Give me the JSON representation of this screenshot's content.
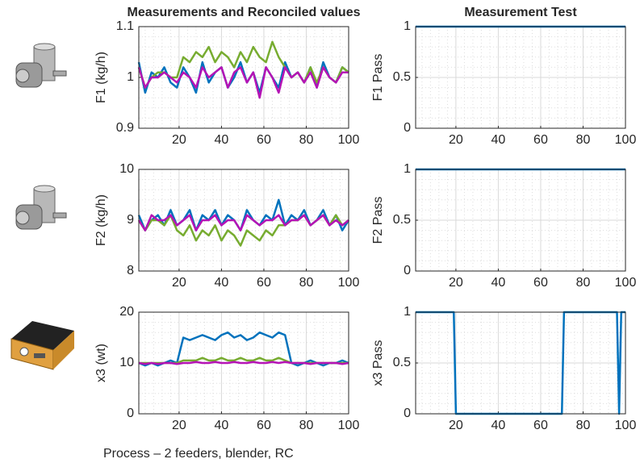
{
  "chart_data": [
    {
      "type": "line",
      "title": "Measurements and Reconciled values",
      "ylabel": "F1 (kg/h)",
      "grid": true,
      "x": [
        1,
        4,
        7,
        10,
        13,
        16,
        19,
        22,
        25,
        28,
        31,
        34,
        37,
        40,
        43,
        46,
        49,
        52,
        55,
        58,
        61,
        64,
        67,
        70,
        73,
        76,
        79,
        82,
        85,
        88,
        91,
        94,
        97,
        100
      ],
      "xlim": [
        1,
        100
      ],
      "xticks": [
        20,
        40,
        60,
        80,
        100
      ],
      "ylim": [
        0.9,
        1.1
      ],
      "yticks": [
        0.9,
        1,
        1.1
      ],
      "series": [
        {
          "color": "#0072bd",
          "values": [
            1.03,
            0.97,
            1.01,
            1.0,
            1.02,
            0.99,
            0.98,
            1.02,
            1.0,
            0.97,
            1.03,
            0.99,
            1.01,
            1.02,
            0.98,
            1.0,
            1.03,
            0.99,
            1.01,
            0.97,
            1.02,
            1.0,
            0.98,
            1.03,
            1.0,
            1.01,
            0.99,
            1.02,
            0.98,
            1.03,
            1.0,
            0.99,
            1.02,
            1.01
          ]
        },
        {
          "color": "#77ac30",
          "values": [
            1.02,
            0.98,
            1.0,
            1.01,
            1.01,
            1.0,
            1.0,
            1.04,
            1.03,
            1.05,
            1.04,
            1.06,
            1.03,
            1.05,
            1.04,
            1.02,
            1.05,
            1.03,
            1.06,
            1.04,
            1.03,
            1.07,
            1.04,
            1.02,
            1.0,
            1.01,
            0.99,
            1.02,
            0.99,
            1.02,
            1.0,
            0.99,
            1.02,
            1.01
          ]
        },
        {
          "color": "#b513b5",
          "values": [
            1.02,
            0.98,
            1.0,
            1.0,
            1.01,
            1.0,
            0.99,
            1.01,
            1.0,
            0.98,
            1.02,
            1.0,
            1.01,
            1.02,
            0.98,
            1.01,
            1.02,
            0.99,
            1.01,
            0.96,
            1.02,
            1.0,
            0.97,
            1.02,
            1.0,
            1.01,
            0.99,
            1.01,
            0.98,
            1.02,
            1.0,
            0.99,
            1.01,
            1.01
          ]
        }
      ]
    },
    {
      "type": "line",
      "title": "Measurement Test",
      "ylabel": "F1 Pass",
      "grid": true,
      "x": [
        1,
        100
      ],
      "xlim": [
        1,
        100
      ],
      "xticks": [
        20,
        40,
        60,
        80,
        100
      ],
      "ylim": [
        0,
        1
      ],
      "yticks": [
        0,
        0.5,
        1
      ],
      "series": [
        {
          "color": "#0072bd",
          "values": [
            1,
            1
          ]
        }
      ]
    },
    {
      "type": "line",
      "ylabel": "F2 (kg/h)",
      "grid": true,
      "x": [
        1,
        4,
        7,
        10,
        13,
        16,
        19,
        22,
        25,
        28,
        31,
        34,
        37,
        40,
        43,
        46,
        49,
        52,
        55,
        58,
        61,
        64,
        67,
        70,
        73,
        76,
        79,
        82,
        85,
        88,
        91,
        94,
        97,
        100
      ],
      "xlim": [
        1,
        100
      ],
      "xticks": [
        20,
        40,
        60,
        80,
        100
      ],
      "ylim": [
        8,
        10
      ],
      "yticks": [
        8,
        9,
        10
      ],
      "series": [
        {
          "color": "#0072bd",
          "values": [
            9.1,
            8.8,
            9.0,
            9.1,
            8.9,
            9.2,
            8.9,
            9.0,
            9.2,
            8.8,
            9.1,
            9.0,
            9.2,
            8.9,
            9.1,
            9.0,
            8.8,
            9.2,
            9.0,
            8.9,
            9.1,
            9.0,
            9.4,
            8.9,
            9.1,
            9.0,
            9.2,
            8.9,
            9.0,
            9.2,
            8.9,
            9.1,
            8.8,
            9.0
          ]
        },
        {
          "color": "#77ac30",
          "values": [
            9.0,
            8.8,
            9.0,
            9.0,
            8.9,
            9.1,
            8.8,
            8.7,
            8.9,
            8.6,
            8.8,
            8.7,
            8.9,
            8.6,
            8.8,
            8.7,
            8.5,
            8.8,
            8.7,
            8.6,
            8.8,
            8.7,
            8.9,
            8.9,
            9.0,
            9.0,
            9.1,
            8.9,
            9.0,
            9.1,
            8.9,
            9.1,
            8.9,
            9.0
          ]
        },
        {
          "color": "#b513b5",
          "values": [
            9.0,
            8.8,
            9.1,
            9.0,
            9.0,
            9.1,
            8.9,
            9.0,
            9.1,
            8.8,
            9.0,
            9.0,
            9.1,
            8.9,
            9.0,
            9.0,
            8.8,
            9.1,
            9.0,
            8.9,
            9.0,
            9.0,
            9.1,
            8.9,
            9.0,
            9.0,
            9.1,
            8.9,
            9.0,
            9.1,
            8.9,
            9.0,
            8.9,
            9.0
          ]
        }
      ]
    },
    {
      "type": "line",
      "ylabel": "F2 Pass",
      "grid": true,
      "x": [
        1,
        100
      ],
      "xlim": [
        1,
        100
      ],
      "xticks": [
        20,
        40,
        60,
        80,
        100
      ],
      "ylim": [
        0,
        1
      ],
      "yticks": [
        0,
        0.5,
        1
      ],
      "series": [
        {
          "color": "#0072bd",
          "values": [
            1,
            1
          ]
        }
      ]
    },
    {
      "type": "line",
      "ylabel": "x3 (wt)",
      "grid": true,
      "x": [
        1,
        4,
        7,
        10,
        13,
        16,
        19,
        22,
        25,
        28,
        31,
        34,
        37,
        40,
        43,
        46,
        49,
        52,
        55,
        58,
        61,
        64,
        67,
        70,
        73,
        76,
        79,
        82,
        85,
        88,
        91,
        94,
        97,
        100
      ],
      "xlim": [
        1,
        100
      ],
      "xticks": [
        20,
        40,
        60,
        80,
        100
      ],
      "ylim": [
        0,
        20
      ],
      "yticks": [
        0,
        10,
        20
      ],
      "series": [
        {
          "color": "#0072bd",
          "values": [
            10,
            9.5,
            10,
            9.5,
            10,
            10.5,
            10,
            15,
            14.5,
            15,
            15.5,
            15,
            14.5,
            15.5,
            16,
            15,
            15.5,
            14.5,
            15,
            16,
            15.5,
            15,
            16,
            15.5,
            10,
            9.5,
            10,
            10.5,
            10,
            9.5,
            10,
            10,
            10.5,
            10
          ]
        },
        {
          "color": "#77ac30",
          "values": [
            10,
            10,
            10,
            10,
            10,
            10,
            10,
            10.5,
            10.5,
            10.5,
            11,
            10.5,
            10.5,
            11,
            10.5,
            10.5,
            11,
            10.5,
            10.5,
            11,
            10.5,
            10.5,
            11,
            10.5,
            10,
            10,
            10,
            10,
            10,
            10,
            10,
            10,
            10,
            10
          ]
        },
        {
          "color": "#b513b5",
          "values": [
            10,
            9.8,
            10,
            9.8,
            10,
            10,
            9.8,
            10,
            10,
            10.2,
            10,
            10,
            10.2,
            10,
            10,
            10.2,
            10,
            10,
            10.2,
            10,
            10,
            10.2,
            10,
            10.2,
            10,
            10,
            10,
            9.8,
            10,
            10,
            10,
            10,
            9.8,
            10
          ]
        }
      ]
    },
    {
      "type": "line",
      "ylabel": "x3 Pass",
      "grid": true,
      "x": [
        1,
        19,
        20,
        70,
        71,
        96,
        97,
        98,
        100
      ],
      "xlim": [
        1,
        100
      ],
      "xticks": [
        20,
        40,
        60,
        80,
        100
      ],
      "ylim": [
        0,
        1
      ],
      "yticks": [
        0,
        0.5,
        1
      ],
      "series": [
        {
          "color": "#0072bd",
          "values": [
            1,
            1,
            0,
            0,
            1,
            1,
            0,
            1,
            1
          ]
        }
      ]
    }
  ],
  "caption": "Process – 2 feeders, blender, RC"
}
